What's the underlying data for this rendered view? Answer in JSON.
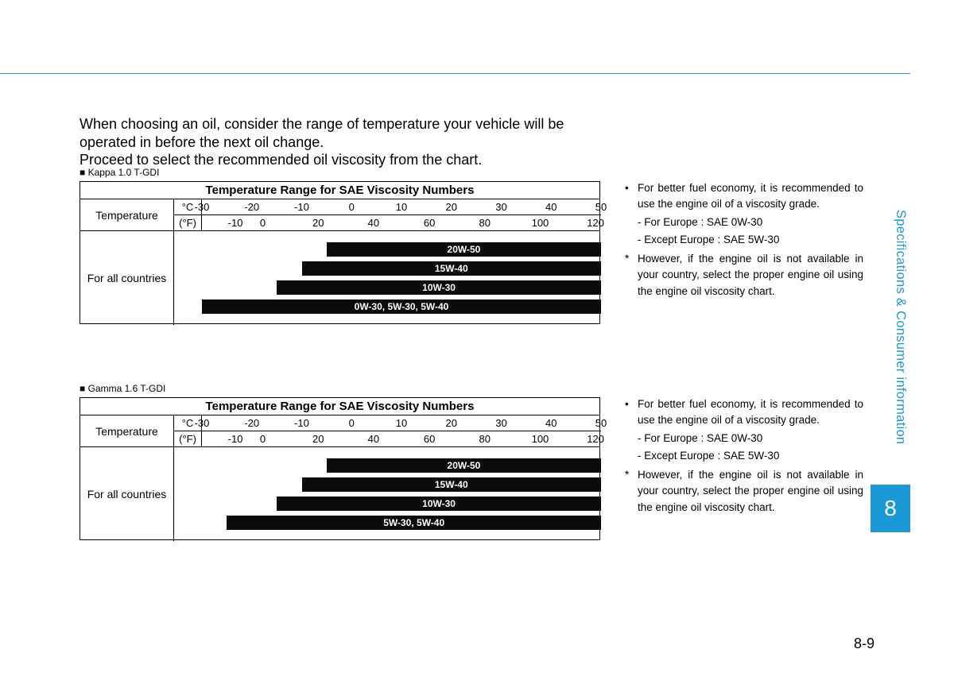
{
  "colors": {
    "accent": "#1a99d6",
    "bar": "#0b0b0b",
    "bar_text": "#ffffff"
  },
  "intro": "When choosing an oil, consider the range of temperature your vehicle will be operated in before the next oil change.\nProceed to select the recommended oil viscosity from the chart.",
  "side_tab": "Specifications & Consumer information",
  "side_box": "8",
  "page_num": "8-9",
  "scale": {
    "c_min": -30,
    "c_max": 50,
    "c_ticks": [
      -30,
      -20,
      -10,
      0,
      10,
      20,
      30,
      40,
      50
    ],
    "f_ticks": [
      -10,
      0,
      20,
      40,
      60,
      80,
      100,
      120
    ],
    "f_tick_at_c": [
      -23.3,
      -17.8,
      -6.7,
      4.4,
      15.6,
      26.7,
      37.8,
      48.9
    ]
  },
  "charts": [
    {
      "caption": "■ Kappa 1.0 T-GDI",
      "title": "Temperature Range for SAE Viscosity Numbers",
      "temp_label": "Temperature",
      "unit_c": "°C",
      "unit_f": "(°F)",
      "region_label": "For all countries",
      "bars": [
        {
          "label": "20W-50",
          "from_c": -5,
          "to_c": 50
        },
        {
          "label": "15W-40",
          "from_c": -10,
          "to_c": 50
        },
        {
          "label": "10W-30",
          "from_c": -15,
          "to_c": 50
        },
        {
          "label": "0W-30, 5W-30, 5W-40",
          "from_c": -30,
          "to_c": 50
        }
      ]
    },
    {
      "caption": "■ Gamma 1.6 T-GDI",
      "title": "Temperature Range for SAE Viscosity Numbers",
      "temp_label": "Temperature",
      "unit_c": "°C",
      "unit_f": "(°F)",
      "region_label": "For all countries",
      "bars": [
        {
          "label": "20W-50",
          "from_c": -5,
          "to_c": 50
        },
        {
          "label": "15W-40",
          "from_c": -10,
          "to_c": 50
        },
        {
          "label": "10W-30",
          "from_c": -15,
          "to_c": 50
        },
        {
          "label": "5W-30, 5W-40",
          "from_c": -25,
          "to_c": 50
        }
      ]
    }
  ],
  "notes": [
    {
      "bullet": "•",
      "main": "For better fuel economy, it is recommended to use the engine oil of a viscosity grade.",
      "sub1": "- For Europe : SAE 0W-30",
      "sub2": "- Except Europe : SAE 5W-30",
      "star": "*",
      "star_body": "However, if the engine oil is not available in your country, select the proper engine oil using the engine oil viscosity chart."
    },
    {
      "bullet": "•",
      "main": "For better fuel economy, it is recommended to use the engine oil of a viscosity grade.",
      "sub1": "- For Europe : SAE 0W-30",
      "sub2": "- Except Europe : SAE 5W-30",
      "star": "*",
      "star_body": "However, if the engine oil is not available in your country, select the proper engine oil using the engine oil viscosity chart."
    }
  ]
}
